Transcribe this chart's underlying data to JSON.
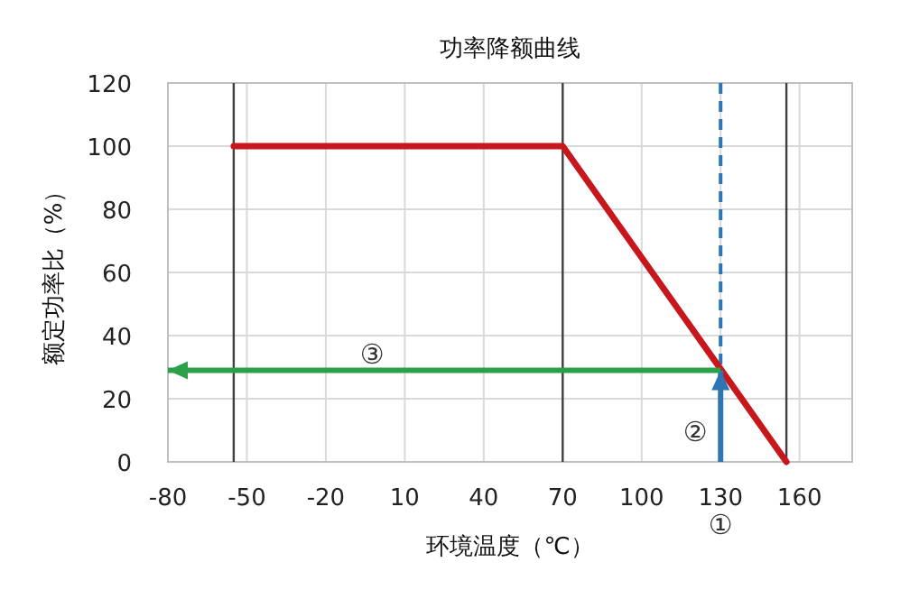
{
  "chart_data": {
    "type": "line",
    "title": "功率降额曲线",
    "xlabel": "环境温度（℃）",
    "ylabel": "额定功率比（%）",
    "xlim": [
      -80,
      180
    ],
    "xticks": [
      -80,
      -50,
      -20,
      10,
      40,
      70,
      100,
      130,
      160
    ],
    "ylim": [
      0,
      120
    ],
    "yticks": [
      0,
      20,
      40,
      60,
      80,
      100,
      120
    ],
    "grid": true,
    "ref_lines": [
      {
        "axis": "x",
        "value": -55,
        "color": "#404040"
      },
      {
        "axis": "x",
        "value": 70,
        "color": "#404040"
      },
      {
        "axis": "x",
        "value": 155,
        "color": "#404040"
      },
      {
        "axis": "x",
        "value": 130,
        "color": "#2e75b6",
        "line_style": "dashed"
      }
    ],
    "series": [
      {
        "color": "#c8161d",
        "x": [
          -55,
          70,
          155
        ],
        "values": [
          100,
          100,
          0
        ]
      },
      {
        "color": "#2e75b6",
        "x": [
          130,
          130
        ],
        "values": [
          0,
          29
        ]
      },
      {
        "color": "#2ca048",
        "x": [
          130,
          -80
        ],
        "values": [
          29,
          29
        ]
      }
    ],
    "annotations": [
      "①",
      "②",
      "③"
    ]
  }
}
